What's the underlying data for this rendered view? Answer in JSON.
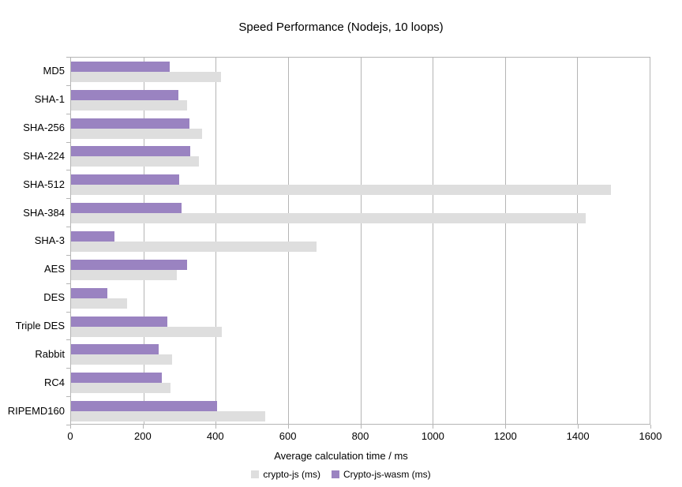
{
  "chart_data": {
    "type": "bar",
    "orientation": "horizontal",
    "title": "Speed Performance (Nodejs, 10 loops)",
    "xlabel": "Average calculation time / ms",
    "xlim": [
      0,
      1600
    ],
    "xticks": [
      0,
      200,
      400,
      600,
      800,
      1000,
      1200,
      1400,
      1600
    ],
    "grid": true,
    "legend_position": "bottom",
    "categories": [
      "MD5",
      "SHA-1",
      "SHA-256",
      "SHA-224",
      "SHA-512",
      "SHA-384",
      "SHA-3",
      "AES",
      "DES",
      "Triple DES",
      "Rabbit",
      "RC4",
      "RIPEMD160"
    ],
    "series": [
      {
        "name": "crypto-js (ms)",
        "color": "#dedede",
        "values": [
          414,
          320,
          363,
          354,
          1492,
          1423,
          678,
          292,
          156,
          417,
          279,
          276,
          537
        ]
      },
      {
        "name": "Crypto-js-wasm (ms)",
        "color": "#9a83c1",
        "values": [
          272,
          296,
          328,
          330,
          299,
          306,
          119,
          320,
          100,
          266,
          243,
          251,
          403
        ]
      }
    ]
  },
  "style": {
    "grid_color": "#b5b5b5",
    "text_color": "#000000",
    "background": "#ffffff"
  }
}
